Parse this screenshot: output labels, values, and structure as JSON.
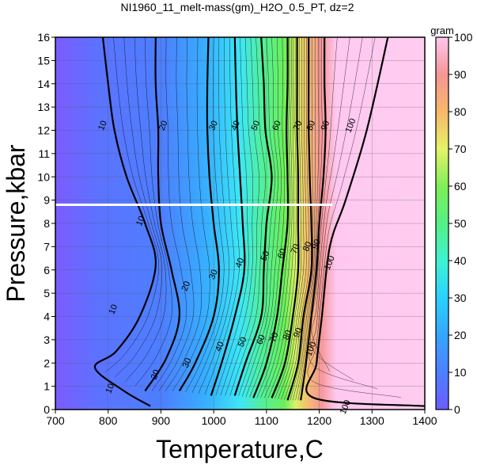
{
  "chart_data": {
    "type": "heatmap",
    "title": "NI1960_11_melt-mass(gm)_H2O_0.5_PT, dz=2",
    "xlabel": "Temperature,C",
    "ylabel": "Pressure,kbar",
    "xlim": [
      700,
      1400
    ],
    "ylim": [
      0,
      16
    ],
    "x_ticks": [
      "700",
      "800",
      "900",
      "1000",
      "1100",
      "1200",
      "1300",
      "1400"
    ],
    "y_ticks": [
      "0",
      "1",
      "2",
      "3",
      "4",
      "5",
      "6",
      "7",
      "8",
      "9",
      "10",
      "11",
      "12",
      "13",
      "14",
      "15",
      "16"
    ],
    "grid": true,
    "colorbar": {
      "label": "gram",
      "range": [
        0,
        100
      ],
      "ticks": [
        "0",
        "10",
        "20",
        "30",
        "40",
        "50",
        "60",
        "70",
        "80",
        "90",
        "100"
      ],
      "colors": [
        "#6a5cff",
        "#4d80ff",
        "#35a6ff",
        "#2ad2ff",
        "#3ff2d0",
        "#55f085",
        "#7fef58",
        "#e6f26a",
        "#f6b86a",
        "#f59595",
        "#ffc8f0"
      ]
    },
    "contours": [
      {
        "level": 10,
        "points": [
          [
            790,
            16
          ],
          [
            800,
            14
          ],
          [
            812,
            12
          ],
          [
            835,
            10
          ],
          [
            870,
            8
          ],
          [
            890,
            6.2
          ],
          [
            860,
            4
          ],
          [
            815,
            2.5
          ],
          [
            775,
            1.8
          ],
          [
            830,
            0.8
          ],
          [
            880,
            0.15
          ]
        ]
      },
      {
        "level": 20,
        "points": [
          [
            890,
            16
          ],
          [
            890,
            14
          ],
          [
            895,
            12
          ],
          [
            895,
            10
          ],
          [
            900,
            8
          ],
          [
            920,
            6
          ],
          [
            935,
            4
          ],
          [
            910,
            2.2
          ],
          [
            870,
            0.8
          ]
        ]
      },
      {
        "level": 30,
        "points": [
          [
            990,
            16
          ],
          [
            988,
            14
          ],
          [
            988,
            12
          ],
          [
            992,
            10
          ],
          [
            1000,
            8
          ],
          [
            1010,
            6
          ],
          [
            1000,
            4
          ],
          [
            965,
            2
          ],
          [
            935,
            0.8
          ]
        ]
      },
      {
        "level": 40,
        "points": [
          [
            1040,
            16
          ],
          [
            1042,
            14
          ],
          [
            1045,
            12
          ],
          [
            1050,
            10
          ],
          [
            1055,
            8
          ],
          [
            1058,
            6
          ],
          [
            1040,
            4
          ],
          [
            1015,
            2
          ],
          [
            995,
            0.6
          ]
        ]
      },
      {
        "level": 50,
        "points": [
          [
            1090,
            16
          ],
          [
            1095,
            14
          ],
          [
            1098,
            12
          ],
          [
            1110,
            10
          ],
          [
            1100,
            8
          ],
          [
            1095,
            6
          ],
          [
            1090,
            4
          ],
          [
            1060,
            2
          ],
          [
            1040,
            0.6
          ]
        ]
      },
      {
        "level": 60,
        "points": [
          [
            1140,
            16
          ],
          [
            1140,
            14
          ],
          [
            1138,
            12
          ],
          [
            1140,
            10
          ],
          [
            1140,
            8
          ],
          [
            1130,
            6
          ],
          [
            1120,
            4
          ],
          [
            1100,
            2
          ],
          [
            1075,
            0.5
          ]
        ]
      },
      {
        "level": 70,
        "points": [
          [
            1158,
            16
          ],
          [
            1158,
            14
          ],
          [
            1158,
            12
          ],
          [
            1160,
            10
          ],
          [
            1160,
            8
          ],
          [
            1160,
            6
          ],
          [
            1150,
            4
          ],
          [
            1135,
            2
          ],
          [
            1110,
            0.5
          ]
        ]
      },
      {
        "level": 80,
        "points": [
          [
            1180,
            16
          ],
          [
            1180,
            14
          ],
          [
            1180,
            12
          ],
          [
            1182,
            10
          ],
          [
            1185,
            8
          ],
          [
            1185,
            6
          ],
          [
            1170,
            4
          ],
          [
            1160,
            2
          ],
          [
            1140,
            0.4
          ]
        ]
      },
      {
        "level": 90,
        "points": [
          [
            1210,
            16
          ],
          [
            1210,
            14
          ],
          [
            1212,
            12
          ],
          [
            1208,
            10
          ],
          [
            1200,
            8
          ],
          [
            1195,
            6
          ],
          [
            1185,
            4
          ],
          [
            1175,
            2
          ],
          [
            1165,
            0.4
          ]
        ]
      },
      {
        "level": 100,
        "points": [
          [
            1330,
            16
          ],
          [
            1290,
            12
          ],
          [
            1250,
            9
          ],
          [
            1220,
            7
          ],
          [
            1205,
            4
          ],
          [
            1195,
            2
          ],
          [
            1190,
            0.5
          ],
          [
            1400,
            0.15
          ]
        ]
      }
    ],
    "contour_labels": [
      {
        "text": "10",
        "x": 790,
        "y": 12.2
      },
      {
        "text": "10",
        "x": 862,
        "y": 8.1
      },
      {
        "text": "10",
        "x": 810,
        "y": 4.3
      },
      {
        "text": "10",
        "x": 804,
        "y": 0.9
      },
      {
        "text": "20",
        "x": 905,
        "y": 12.2
      },
      {
        "text": "20",
        "x": 948,
        "y": 5.3
      },
      {
        "text": "20",
        "x": 890,
        "y": 1.5
      },
      {
        "text": "30",
        "x": 1000,
        "y": 12.2
      },
      {
        "text": "30",
        "x": 1000,
        "y": 5.8
      },
      {
        "text": "30",
        "x": 950,
        "y": 2.0
      },
      {
        "text": "40",
        "x": 1042,
        "y": 12.2
      },
      {
        "text": "40",
        "x": 1050,
        "y": 6.3
      },
      {
        "text": "40",
        "x": 1012,
        "y": 2.7
      },
      {
        "text": "50",
        "x": 1080,
        "y": 12.2
      },
      {
        "text": "50",
        "x": 1098,
        "y": 6.6
      },
      {
        "text": "50",
        "x": 1055,
        "y": 2.9
      },
      {
        "text": "60",
        "x": 1120,
        "y": 12.2
      },
      {
        "text": "60",
        "x": 1130,
        "y": 6.7
      },
      {
        "text": "60",
        "x": 1090,
        "y": 3.0
      },
      {
        "text": "70",
        "x": 1160,
        "y": 12.2
      },
      {
        "text": "70",
        "x": 1155,
        "y": 6.9
      },
      {
        "text": "70",
        "x": 1115,
        "y": 3.1
      },
      {
        "text": "80",
        "x": 1185,
        "y": 12.2
      },
      {
        "text": "80",
        "x": 1178,
        "y": 7.0
      },
      {
        "text": "80",
        "x": 1140,
        "y": 3.2
      },
      {
        "text": "90",
        "x": 1212,
        "y": 12.2
      },
      {
        "text": "90",
        "x": 1195,
        "y": 7.1
      },
      {
        "text": "90",
        "x": 1160,
        "y": 3.3
      },
      {
        "text": "100",
        "x": 1260,
        "y": 12.2
      },
      {
        "text": "100",
        "x": 1220,
        "y": 6.3
      },
      {
        "text": "100",
        "x": 1185,
        "y": 2.6
      },
      {
        "text": "100",
        "x": 1250,
        "y": 0.1
      }
    ],
    "marker_line": {
      "y": 8.8,
      "x_from": 700,
      "x_to": 1225,
      "color": "#ffffff"
    }
  }
}
